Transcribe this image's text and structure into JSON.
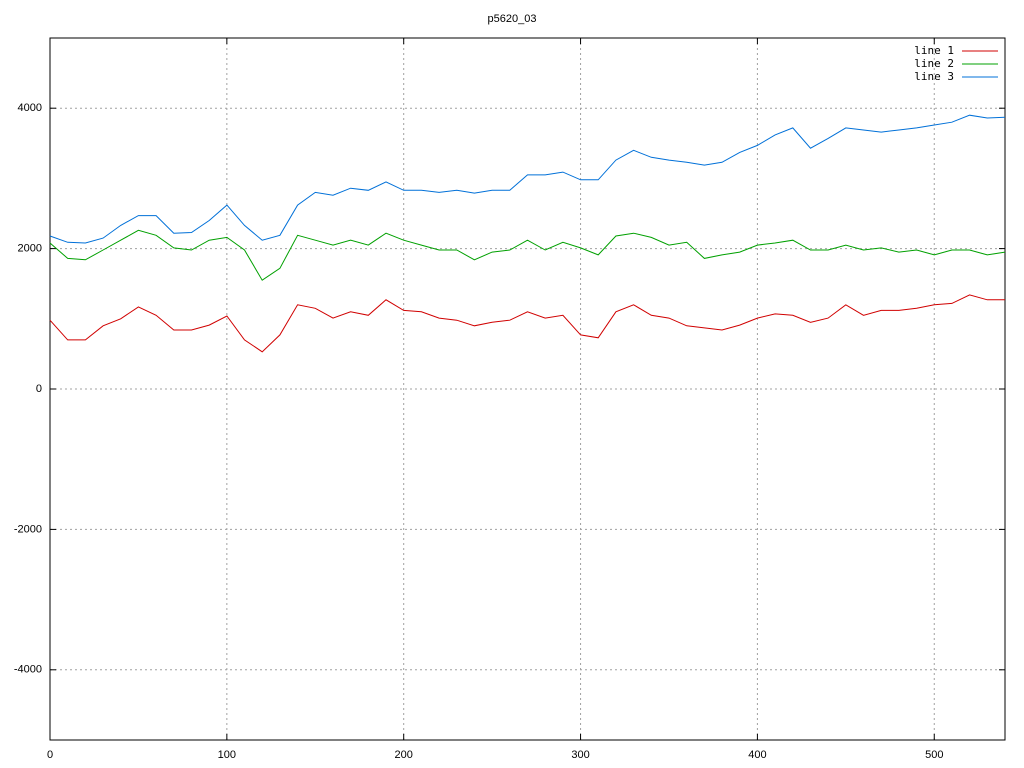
{
  "chart_data": {
    "type": "line",
    "title": "p5620_03",
    "x": [
      0,
      10,
      20,
      30,
      40,
      50,
      60,
      70,
      80,
      90,
      100,
      110,
      120,
      130,
      140,
      150,
      160,
      170,
      180,
      190,
      200,
      210,
      220,
      230,
      240,
      250,
      260,
      270,
      280,
      290,
      300,
      310,
      320,
      330,
      340,
      350,
      360,
      370,
      380,
      390,
      400,
      410,
      420,
      430,
      440,
      450,
      460,
      470,
      480,
      490,
      500,
      510,
      520,
      530,
      540
    ],
    "series": [
      {
        "name": "line 1",
        "color": "#d00000",
        "values": [
          980,
          700,
          700,
          900,
          1000,
          1170,
          1050,
          840,
          840,
          910,
          1040,
          700,
          530,
          770,
          1200,
          1150,
          1010,
          1100,
          1050,
          1270,
          1120,
          1100,
          1010,
          980,
          900,
          950,
          980,
          1100,
          1010,
          1050,
          770,
          730,
          1100,
          1200,
          1050,
          1010,
          900,
          870,
          840,
          910,
          1010,
          1070,
          1050,
          950,
          1010,
          1200,
          1050,
          1120,
          1120,
          1150,
          1200,
          1220,
          1340,
          1270,
          1270
        ]
      },
      {
        "name": "line 2",
        "color": "#00a000",
        "values": [
          2080,
          1860,
          1840,
          1980,
          2120,
          2260,
          2190,
          2010,
          1980,
          2120,
          2160,
          1980,
          1550,
          1720,
          2190,
          2120,
          2050,
          2120,
          2050,
          2220,
          2120,
          2050,
          1980,
          1980,
          1840,
          1950,
          1980,
          2120,
          1980,
          2090,
          2010,
          1910,
          2180,
          2220,
          2160,
          2050,
          2090,
          1860,
          1910,
          1950,
          2050,
          2080,
          2120,
          1980,
          1980,
          2050,
          1980,
          2010,
          1950,
          1980,
          1910,
          1980,
          1980,
          1910,
          1950
        ]
      },
      {
        "name": "line 3",
        "color": "#0070d8",
        "values": [
          2180,
          2090,
          2080,
          2150,
          2330,
          2470,
          2470,
          2220,
          2230,
          2400,
          2620,
          2330,
          2120,
          2190,
          2620,
          2800,
          2760,
          2860,
          2830,
          2950,
          2830,
          2830,
          2800,
          2830,
          2790,
          2830,
          2830,
          3050,
          3050,
          3090,
          2980,
          2980,
          3260,
          3400,
          3300,
          3260,
          3230,
          3190,
          3230,
          3370,
          3470,
          3620,
          3720,
          3430,
          3570,
          3720,
          3690,
          3660,
          3690,
          3720,
          3760,
          3800,
          3900,
          3860,
          3870
        ]
      }
    ],
    "xlim": [
      0,
      540
    ],
    "xticks": [
      0,
      100,
      200,
      300,
      400,
      500
    ],
    "ylim": [
      -5000,
      5000
    ],
    "yticks": [
      -4000,
      -2000,
      0,
      2000,
      4000
    ],
    "grid": true,
    "legend": "top-right"
  }
}
